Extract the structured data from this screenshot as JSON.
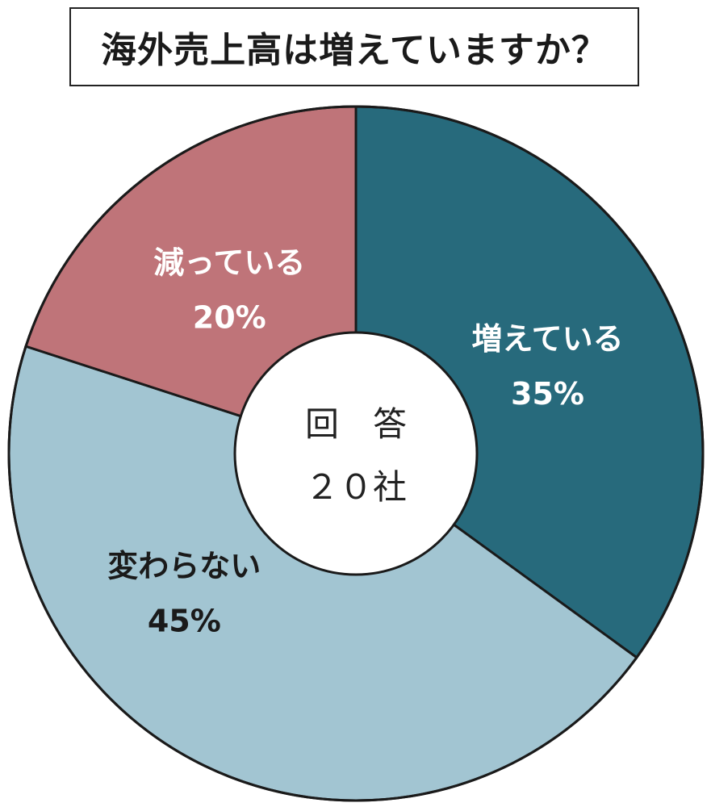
{
  "chart_data": {
    "type": "pie",
    "title": "海外売上高は増えていますか？",
    "center_label": {
      "line1": "回　答",
      "line2": "２０社"
    },
    "slices": [
      {
        "label": "増えている",
        "value": 35,
        "value_label": "35%",
        "color": "#276a7c",
        "text_color": "#ffffff"
      },
      {
        "label": "変わらない",
        "value": 45,
        "value_label": "45%",
        "color": "#a2c5d2",
        "text_color": "#1a1a1a"
      },
      {
        "label": "減っている",
        "value": 20,
        "value_label": "20%",
        "color": "#bf7479",
        "text_color": "#ffffff"
      }
    ],
    "start": "12 o'clock",
    "direction": "clockwise",
    "donut": true
  }
}
